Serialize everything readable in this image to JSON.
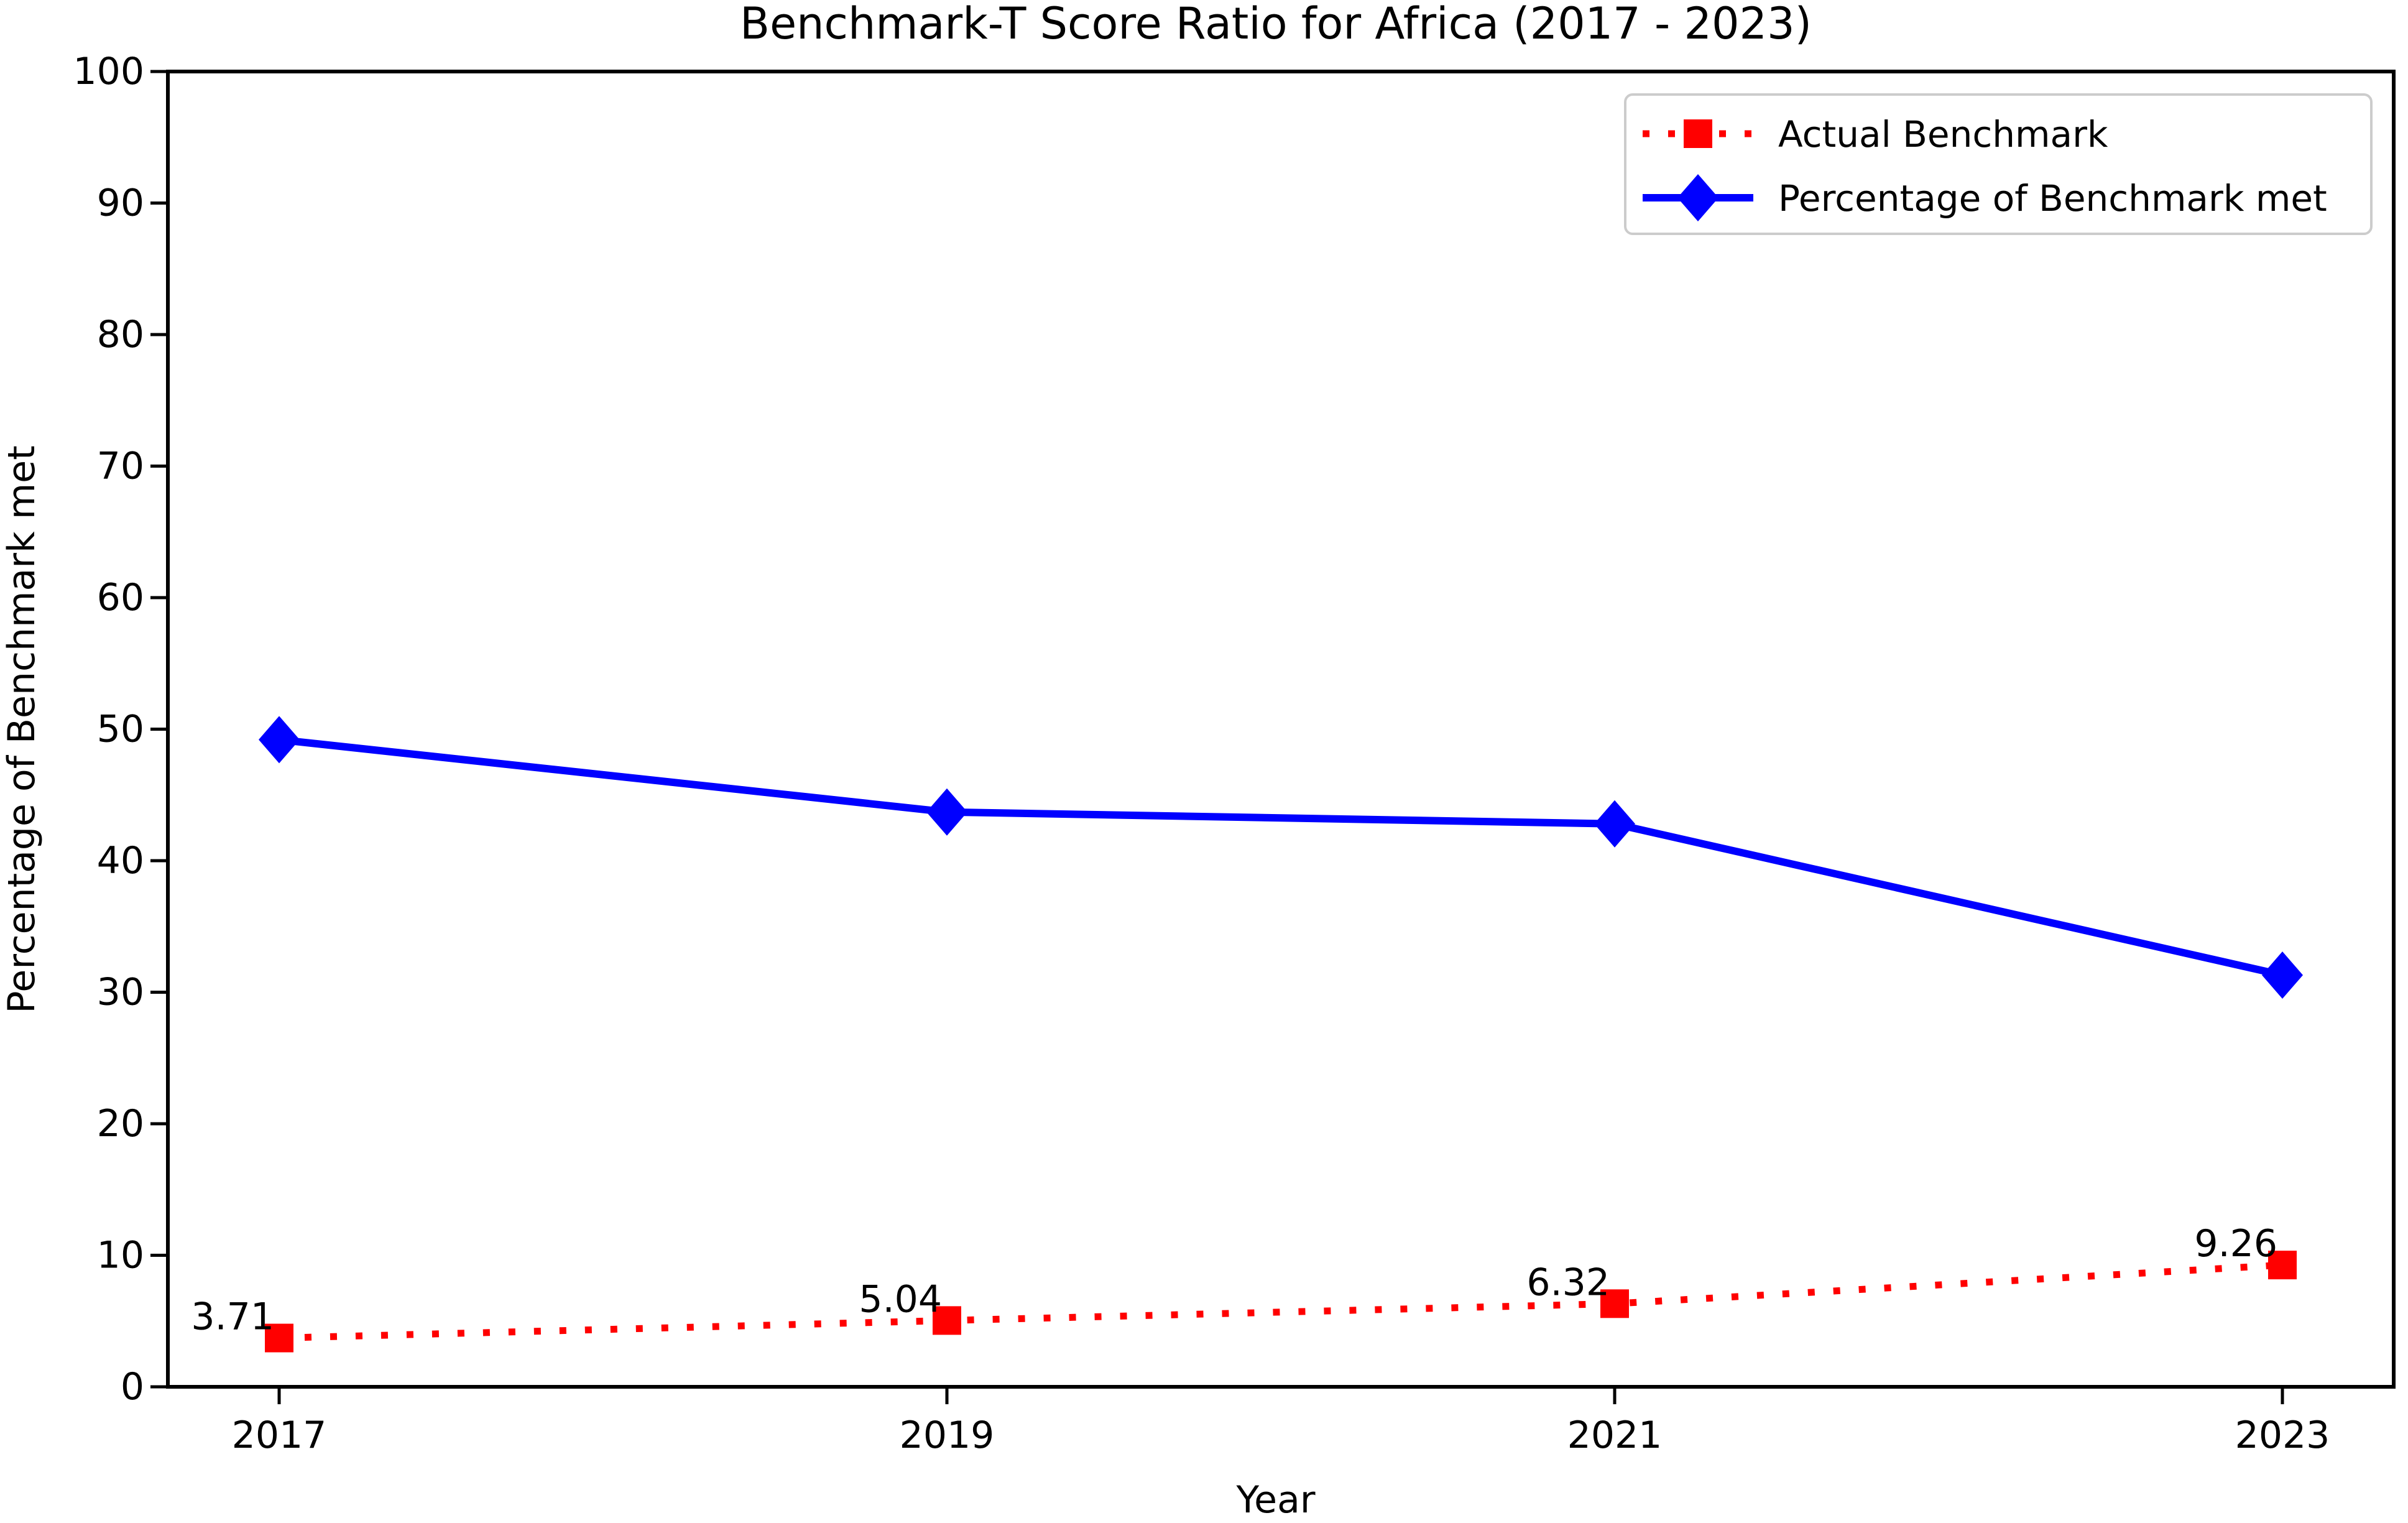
{
  "chart_data": {
    "type": "line",
    "title": "Benchmark-T Score Ratio for Africa (2017 - 2023)",
    "xlabel": "Year",
    "ylabel": "Percentage of Benchmark met",
    "categories": [
      "2017",
      "2019",
      "2021",
      "2023"
    ],
    "y_ticks": [
      0,
      10,
      20,
      30,
      40,
      50,
      60,
      70,
      80,
      90,
      100
    ],
    "ylim": [
      0,
      100
    ],
    "grid": false,
    "legend_position": "upper right",
    "series": [
      {
        "name": "Actual Benchmark",
        "color": "#ff0000",
        "line_style": "dotted",
        "marker": "square",
        "values": [
          3.71,
          5.04,
          6.32,
          9.26
        ],
        "data_labels": [
          "3.71",
          "5.04",
          "6.32",
          "9.26"
        ]
      },
      {
        "name": "Percentage of Benchmark met",
        "color": "#0000ff",
        "line_style": "solid",
        "marker": "diamond",
        "values": [
          49.2,
          43.7,
          42.8,
          31.3
        ],
        "data_labels": null
      }
    ],
    "colors": {
      "axis": "#000000",
      "text": "#000000",
      "legend_border": "#cccccc",
      "background": "#ffffff"
    }
  }
}
